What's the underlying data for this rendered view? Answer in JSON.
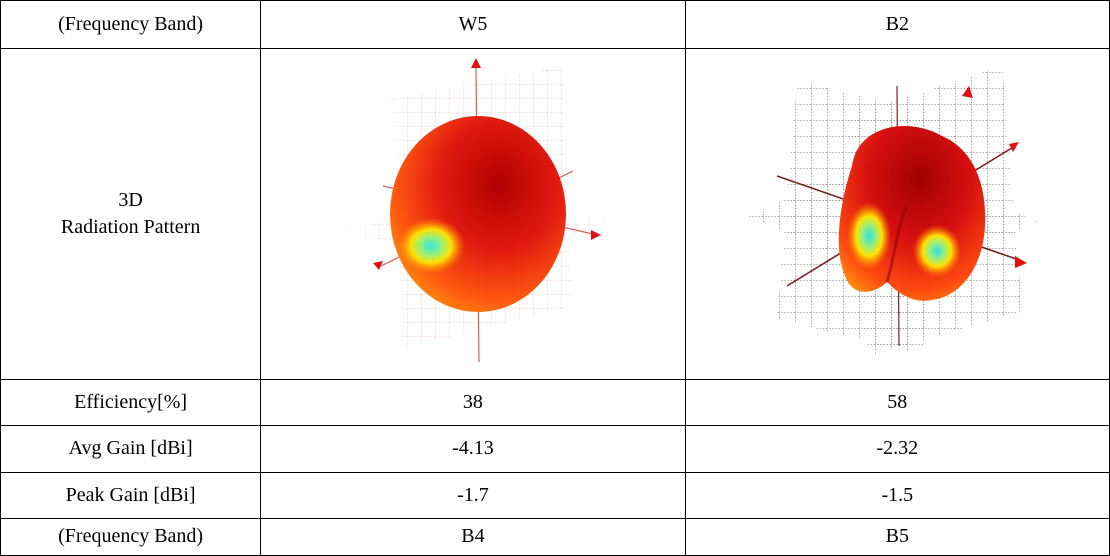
{
  "rows": {
    "band_label_1": "(Frequency Band)",
    "band_w5": "W5",
    "band_b2": "B2",
    "pattern_label_line1": "3D",
    "pattern_label_line2": "Radiation Pattern",
    "efficiency_label": "Efficiency[%]",
    "efficiency_w5": "38",
    "efficiency_b2": "58",
    "avg_gain_label": "Avg Gain [dBi]",
    "avg_gain_w5": "-4.13",
    "avg_gain_b2": "-2.32",
    "peak_gain_label": "Peak Gain [dBi]",
    "peak_gain_w5": "-1.7",
    "peak_gain_b2": "-1.5",
    "band_label_2": "(Frequency Band)",
    "band_b4": "B4",
    "band_b5": "B5"
  },
  "colors": {
    "pattern_red": "#e01010",
    "pattern_dark_red": "#a00000",
    "pattern_orange": "#ff8a00",
    "pattern_yellow": "#ffe000",
    "pattern_cyan": "#30e0e0",
    "grid_w5": "#e8a0a0",
    "grid_b2": "#303030"
  }
}
